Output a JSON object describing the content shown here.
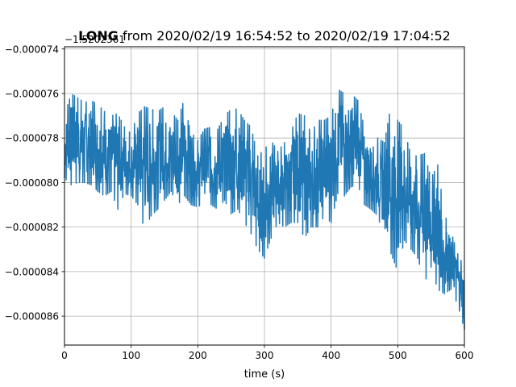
{
  "chart_data": {
    "type": "line",
    "title_bold": "LONG",
    "title_rest": " from 2020/02/19 16:54:52 to 2020/02/19 17:04:52",
    "offset_label": "−1.5202361",
    "xlabel": "time (s)",
    "ylabel": "",
    "xlim": [
      0,
      600
    ],
    "ylim": [
      -8.73e-05,
      -7.39e-05
    ],
    "x_ticks": [
      0,
      100,
      200,
      300,
      400,
      500,
      600
    ],
    "x_tick_labels": [
      "0",
      "100",
      "200",
      "300",
      "400",
      "500",
      "600"
    ],
    "y_ticks": [
      -7.4e-05,
      -7.6e-05,
      -7.8e-05,
      -8e-05,
      -8.2e-05,
      -8.4e-05,
      -8.6e-05
    ],
    "y_tick_labels": [
      "−0.000074",
      "−0.000076",
      "−0.000078",
      "−0.000080",
      "−0.000082",
      "−0.000084",
      "−0.000086"
    ],
    "grid": true,
    "series": [
      {
        "color": "#1f77b4",
        "x": [
          0,
          10,
          20,
          30,
          40,
          50,
          60,
          70,
          80,
          90,
          100,
          110,
          120,
          130,
          140,
          150,
          160,
          170,
          180,
          190,
          200,
          210,
          220,
          230,
          240,
          250,
          260,
          270,
          280,
          290,
          300,
          310,
          320,
          330,
          340,
          350,
          360,
          370,
          380,
          390,
          400,
          410,
          420,
          430,
          440,
          450,
          460,
          470,
          480,
          490,
          500,
          510,
          520,
          530,
          540,
          550,
          560,
          570,
          580,
          590,
          600
        ],
        "min": [
          -7.98e-05,
          -8.01e-05,
          -8e-05,
          -8e-05,
          -8.01e-05,
          -8.04e-05,
          -8.06e-05,
          -8.04e-05,
          -8.12e-05,
          -8.05e-05,
          -8.06e-05,
          -8.1e-05,
          -8.21e-05,
          -8.15e-05,
          -8.12e-05,
          -8.08e-05,
          -8.04e-05,
          -8.1e-05,
          -8.06e-05,
          -8.1e-05,
          -8.11e-05,
          -8.09e-05,
          -8.1e-05,
          -8.12e-05,
          -8.08e-05,
          -8.14e-05,
          -8.12e-05,
          -8.18e-05,
          -8.23e-05,
          -8.3e-05,
          -8.34e-05,
          -8.25e-05,
          -8.18e-05,
          -8.2e-05,
          -8.18e-05,
          -8.18e-05,
          -8.25e-05,
          -8.2e-05,
          -8.2e-05,
          -8.15e-05,
          -8.18e-05,
          -8.05e-05,
          -8.06e-05,
          -8.02e-05,
          -8.01e-05,
          -8.1e-05,
          -8.12e-05,
          -8.15e-05,
          -8.26e-05,
          -8.32e-05,
          -8.4e-05,
          -8.26e-05,
          -8.3e-05,
          -8.34e-05,
          -8.45e-05,
          -8.38e-05,
          -8.48e-05,
          -8.5e-05,
          -8.48e-05,
          -8.55e-05,
          -8.66e-05
        ],
        "max": [
          -7.7e-05,
          -7.6e-05,
          -7.62e-05,
          -7.64e-05,
          -7.63e-05,
          -7.65e-05,
          -7.68e-05,
          -7.7e-05,
          -7.69e-05,
          -7.75e-05,
          -7.78e-05,
          -7.69e-05,
          -7.66e-05,
          -7.67e-05,
          -7.68e-05,
          -7.66e-05,
          -7.68e-05,
          -7.72e-05,
          -7.62e-05,
          -7.7e-05,
          -7.81e-05,
          -7.76e-05,
          -7.75e-05,
          -7.76e-05,
          -7.7e-05,
          -7.67e-05,
          -7.67e-05,
          -7.72e-05,
          -7.75e-05,
          -7.88e-05,
          -7.85e-05,
          -7.81e-05,
          -7.86e-05,
          -7.82e-05,
          -7.77e-05,
          -7.69e-05,
          -7.7e-05,
          -7.78e-05,
          -7.72e-05,
          -7.72e-05,
          -7.7e-05,
          -7.58e-05,
          -7.6e-05,
          -7.6e-05,
          -7.63e-05,
          -7.75e-05,
          -7.79e-05,
          -7.8e-05,
          -7.82e-05,
          -7.65e-05,
          -7.72e-05,
          -7.76e-05,
          -7.88e-05,
          -7.88e-05,
          -7.87e-05,
          -7.98e-05,
          -7.92e-05,
          -8.14e-05,
          -8.22e-05,
          -8.32e-05,
          -8.38e-05
        ]
      }
    ]
  }
}
